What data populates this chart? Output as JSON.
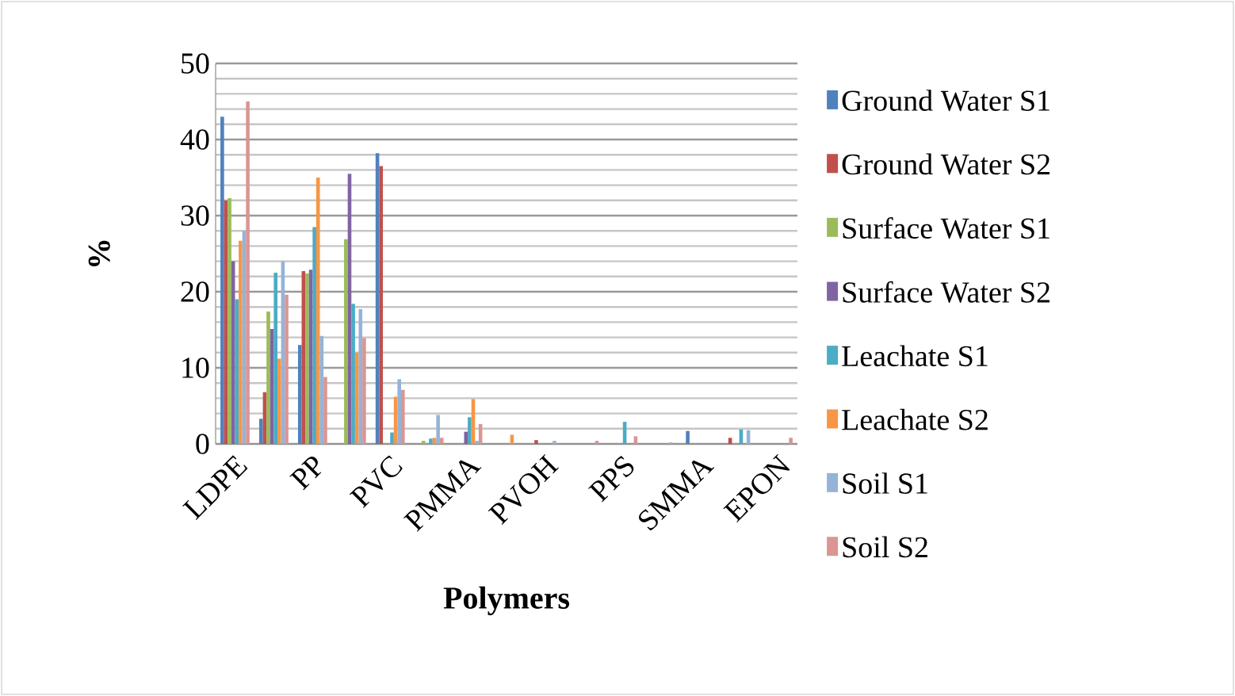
{
  "chart_data": {
    "type": "bar",
    "xlabel": "Polymers",
    "ylabel": "%",
    "categories": [
      "LDPE",
      null,
      "PP",
      null,
      "PVC",
      null,
      "PMMA",
      null,
      "PVOH",
      null,
      "PPS",
      null,
      "SMMA",
      null,
      "EPON"
    ],
    "series": [
      {
        "name": "Ground Water S1",
        "color": "#4f81bd",
        "values": [
          43,
          3.3,
          13,
          0,
          38.2,
          0,
          0,
          0,
          0,
          0,
          0,
          0,
          1.7,
          0,
          0
        ]
      },
      {
        "name": "Ground Water S2",
        "color": "#c0504d",
        "values": [
          32,
          6.8,
          22.7,
          0,
          36.5,
          0,
          0,
          0,
          0.5,
          0,
          0,
          0,
          0,
          0.8,
          0
        ]
      },
      {
        "name": "Surface Water S1",
        "color": "#9bbb59",
        "values": [
          32.3,
          17.4,
          22.4,
          26.9,
          0,
          0.4,
          0,
          0,
          0,
          0,
          0,
          0,
          0,
          0,
          0
        ]
      },
      {
        "name": "Surface Water S2",
        "color": "#8064a2",
        "values": [
          24,
          15.1,
          22.9,
          35.5,
          0,
          0,
          1.6,
          0,
          0,
          0,
          0,
          0,
          0,
          0,
          0
        ]
      },
      {
        "name": "Leachate S1",
        "color": "#4bacc6",
        "values": [
          19,
          22.5,
          28.5,
          18.4,
          1.5,
          0.7,
          3.5,
          0,
          0,
          0,
          2.9,
          0,
          0,
          1.9,
          0
        ]
      },
      {
        "name": "Leachate S2",
        "color": "#f79646",
        "values": [
          26.7,
          11.2,
          35,
          12,
          6.2,
          0.8,
          5.9,
          1.2,
          0,
          0,
          0,
          0,
          0,
          0,
          0
        ]
      },
      {
        "name": "Soil S1",
        "color": "#95b3d7",
        "values": [
          28,
          24,
          14.2,
          17.7,
          8.5,
          3.8,
          0.4,
          0,
          0.4,
          0,
          0,
          0.2,
          0,
          1.8,
          0
        ]
      },
      {
        "name": "Soil S2",
        "color": "#da9694",
        "values": [
          45,
          19.6,
          8.8,
          13.9,
          7.1,
          0.8,
          2.6,
          0,
          0,
          0.4,
          1,
          0,
          0,
          0,
          0.8
        ]
      }
    ],
    "ylim": [
      0,
      50
    ],
    "yticks": [
      0,
      10,
      20,
      30,
      40,
      50
    ],
    "grid": "y",
    "legend": "right"
  }
}
